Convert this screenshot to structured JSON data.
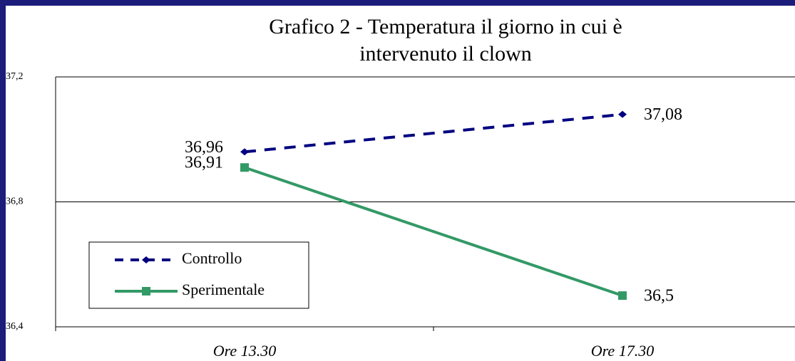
{
  "chart_data": {
    "type": "line",
    "title": "Grafico 2 - Temperatura il giorno in cui è intervenuto il clown",
    "categories": [
      "Ore 13.30",
      "Ore 17.30"
    ],
    "series": [
      {
        "name": "Controllo",
        "color": "#000080",
        "values": [
          36.96,
          37.08
        ],
        "value_labels": [
          "36,96",
          "37,08"
        ],
        "dash": true,
        "marker": "diamond"
      },
      {
        "name": "Sperimentale",
        "color": "#339966",
        "values": [
          36.91,
          36.5
        ],
        "value_labels": [
          "36,91",
          "36,5"
        ],
        "dash": false,
        "marker": "square"
      }
    ],
    "ylim": [
      36.4,
      37.2
    ],
    "yticks": [
      {
        "value": 36.4,
        "label": "36,4"
      },
      {
        "value": 36.8,
        "label": "36,8"
      },
      {
        "value": 37.2,
        "label": "37,2"
      }
    ],
    "grid": true,
    "legend": "lower left"
  }
}
